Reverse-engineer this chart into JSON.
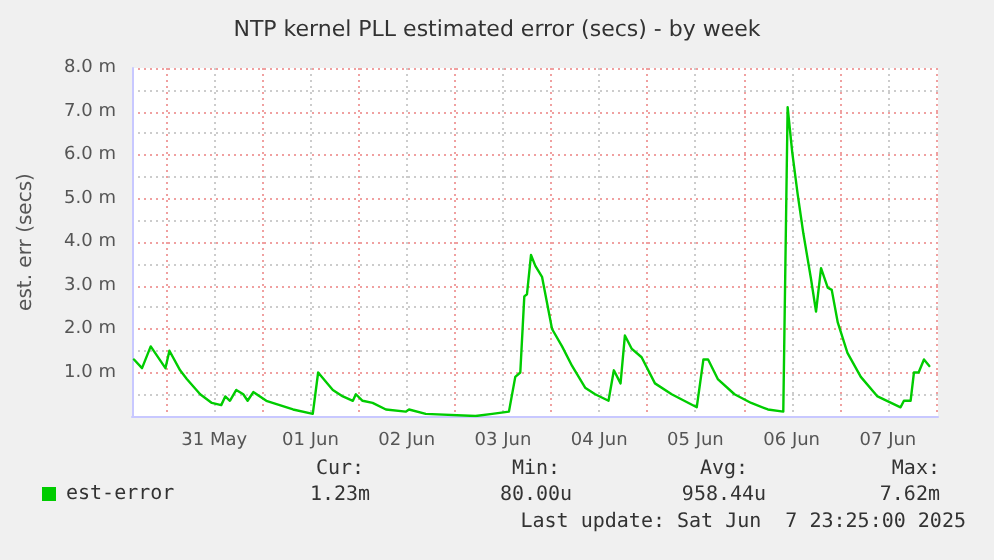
{
  "chart_data": {
    "type": "line",
    "title": "NTP kernel PLL estimated error (secs) - by week",
    "ylabel": "est. err (secs)",
    "x": [
      "2025-05-30T16:00",
      "2025-05-30T18:00",
      "2025-05-30T20:10",
      "2025-05-30T23:50",
      "2025-05-31T00:50",
      "2025-05-31T03:30",
      "2025-05-31T05:10",
      "2025-05-31T08:30",
      "2025-05-31T11:25",
      "2025-05-31T13:45",
      "2025-05-31T14:45",
      "2025-05-31T15:55",
      "2025-05-31T17:30",
      "2025-05-31T19:15",
      "2025-05-31T20:20",
      "2025-05-31T21:45",
      "2025-06-01T01:00",
      "2025-06-01T04:20",
      "2025-06-01T07:40",
      "2025-06-01T12:35",
      "2025-06-01T13:55",
      "2025-06-01T17:35",
      "2025-06-01T20:05",
      "2025-06-01T22:35",
      "2025-06-01T23:20",
      "2025-06-02T01:00",
      "2025-06-02T03:30",
      "2025-06-02T06:50",
      "2025-06-02T11:45",
      "2025-06-02T12:35",
      "2025-06-02T16:45",
      "2025-06-03T05:10",
      "2025-06-03T09:20",
      "2025-06-03T13:30",
      "2025-06-03T15:05",
      "2025-06-03T16:20",
      "2025-06-03T17:20",
      "2025-06-03T18:00",
      "2025-06-03T19:00",
      "2025-06-03T20:05",
      "2025-06-03T21:45",
      "2025-06-04T00:15",
      "2025-06-04T02:45",
      "2025-06-04T05:15",
      "2025-06-04T08:30",
      "2025-06-04T11:00",
      "2025-06-04T14:20",
      "2025-06-04T15:40",
      "2025-06-04T17:20",
      "2025-06-04T18:25",
      "2025-06-04T20:05",
      "2025-06-04T22:35",
      "2025-06-05T01:55",
      "2025-06-05T06:05",
      "2025-06-05T12:20",
      "2025-06-05T14:00",
      "2025-06-05T15:10",
      "2025-06-05T17:35",
      "2025-06-05T21:45",
      "2025-06-06T01:55",
      "2025-06-06T06:05",
      "2025-06-06T09:55",
      "2025-06-06T11:00",
      "2025-06-06T12:10",
      "2025-06-06T13:30",
      "2025-06-06T14:55",
      "2025-06-06T16:50",
      "2025-06-06T18:05",
      "2025-06-06T19:20",
      "2025-06-06T21:00",
      "2025-06-06T22:00",
      "2025-06-06T23:30",
      "2025-06-07T01:55",
      "2025-06-07T05:15",
      "2025-06-07T09:25",
      "2025-06-07T15:10",
      "2025-06-07T16:00",
      "2025-06-07T17:40",
      "2025-06-07T18:30",
      "2025-06-07T19:40",
      "2025-06-07T21:00",
      "2025-06-07T22:20"
    ],
    "series": [
      {
        "name": "est-error",
        "color": "#00cc00",
        "values": [
          1.3,
          1.1,
          1.6,
          1.1,
          1.5,
          1.05,
          0.85,
          0.5,
          0.3,
          0.25,
          0.45,
          0.35,
          0.6,
          0.5,
          0.35,
          0.55,
          0.35,
          0.25,
          0.15,
          0.05,
          1.0,
          0.6,
          0.45,
          0.35,
          0.5,
          0.35,
          0.3,
          0.15,
          0.1,
          0.15,
          0.05,
          0.0,
          0.05,
          0.1,
          0.9,
          1.0,
          2.75,
          2.8,
          3.7,
          3.45,
          3.2,
          2.0,
          1.6,
          1.15,
          0.65,
          0.5,
          0.35,
          1.05,
          0.75,
          1.85,
          1.55,
          1.35,
          0.75,
          0.5,
          0.2,
          1.3,
          1.3,
          0.85,
          0.5,
          0.3,
          0.15,
          0.1,
          7.1,
          6.05,
          5.1,
          4.2,
          3.15,
          2.4,
          3.4,
          2.95,
          2.9,
          2.15,
          1.45,
          0.9,
          0.45,
          0.2,
          0.35,
          0.35,
          1.0,
          1.0,
          1.3,
          1.15
        ]
      }
    ],
    "xlim": [
      "2025-05-30T15:30",
      "2025-06-08T00:30"
    ],
    "xticks": [
      {
        "value": "2025-05-31T00:00",
        "label": null
      },
      {
        "value": "2025-05-31T12:00",
        "label": "31 May"
      },
      {
        "value": "2025-06-01T00:00",
        "label": null
      },
      {
        "value": "2025-06-01T12:00",
        "label": "01 Jun"
      },
      {
        "value": "2025-06-02T00:00",
        "label": null
      },
      {
        "value": "2025-06-02T12:00",
        "label": "02 Jun"
      },
      {
        "value": "2025-06-03T00:00",
        "label": null
      },
      {
        "value": "2025-06-03T12:00",
        "label": "03 Jun"
      },
      {
        "value": "2025-06-04T00:00",
        "label": null
      },
      {
        "value": "2025-06-04T12:00",
        "label": "04 Jun"
      },
      {
        "value": "2025-06-05T00:00",
        "label": null
      },
      {
        "value": "2025-06-05T12:00",
        "label": "05 Jun"
      },
      {
        "value": "2025-06-06T00:00",
        "label": null
      },
      {
        "value": "2025-06-06T12:00",
        "label": "06 Jun"
      },
      {
        "value": "2025-06-07T00:00",
        "label": null
      },
      {
        "value": "2025-06-07T12:00",
        "label": "07 Jun"
      },
      {
        "value": "2025-06-08T00:00",
        "label": null
      }
    ],
    "ylim": [
      0,
      8
    ],
    "yticks": [
      {
        "value": 0,
        "label": null
      },
      {
        "value": 0.5,
        "label": null
      },
      {
        "value": 1,
        "label": "1.0 m"
      },
      {
        "value": 1.5,
        "label": null
      },
      {
        "value": 2,
        "label": "2.0 m"
      },
      {
        "value": 2.5,
        "label": null
      },
      {
        "value": 3,
        "label": "3.0 m"
      },
      {
        "value": 3.5,
        "label": null
      },
      {
        "value": 4,
        "label": "4.0 m"
      },
      {
        "value": 4.5,
        "label": null
      },
      {
        "value": 5,
        "label": "5.0 m"
      },
      {
        "value": 5.5,
        "label": null
      },
      {
        "value": 6,
        "label": "6.0 m"
      },
      {
        "value": 6.5,
        "label": null
      },
      {
        "value": 7,
        "label": "7.0 m"
      },
      {
        "value": 7.5,
        "label": null
      },
      {
        "value": 8,
        "label": "8.0 m"
      }
    ],
    "grid": true,
    "legend": "bottom left",
    "marker": "none",
    "line_style": "solid",
    "annotations": [
      "Cur:\n1.23m",
      "Min:\n80.00u",
      "Avg:\n958.44u",
      "Max:\n7.62m",
      "Last update: Sat Jun  7 23:25:00 2025"
    ]
  }
}
